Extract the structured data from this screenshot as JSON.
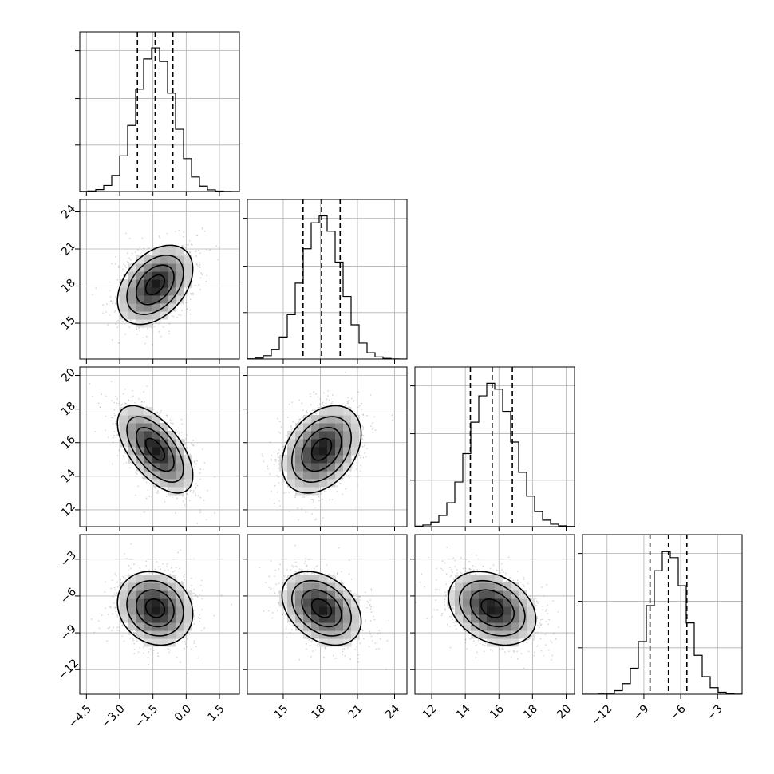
{
  "chart_data": {
    "type": "corner",
    "parameters": [
      {
        "mean": -1.4,
        "sd": 0.85,
        "hist_range": [
          -4.8,
          2.4
        ],
        "quantiles": [
          -2.2,
          -1.4,
          -0.6
        ],
        "ticks": [
          -4.5,
          -3.0,
          -1.5,
          0.0,
          1.5
        ],
        "tick_labels": [
          "−4.5",
          "−3.0",
          "−1.5",
          "0.0",
          "1.5"
        ]
      },
      {
        "mean": 18.1,
        "sd": 1.6,
        "hist_range": [
          12.1,
          25.0
        ],
        "quantiles": [
          16.6,
          18.1,
          19.6
        ],
        "ticks": [
          15,
          18,
          21,
          24
        ],
        "tick_labels": [
          "15",
          "18",
          "21",
          "24"
        ]
      },
      {
        "mean": 15.6,
        "sd": 1.3,
        "hist_range": [
          11.0,
          20.5
        ],
        "quantiles": [
          14.3,
          15.6,
          16.8
        ],
        "ticks": [
          12,
          14,
          16,
          18,
          20
        ],
        "tick_labels": [
          "12",
          "14",
          "16",
          "18",
          "20"
        ]
      },
      {
        "mean": -7.0,
        "sd": 1.5,
        "hist_range": [
          -14.0,
          -1.0
        ],
        "quantiles": [
          -8.5,
          -7.0,
          -5.5
        ],
        "ticks": [
          -12,
          -9,
          -6,
          -3
        ],
        "tick_labels": [
          "−12",
          "−9",
          "−6",
          "−3"
        ]
      }
    ],
    "correlations": [
      [
        1,
        0.4,
        -0.6,
        -0.15
      ],
      [
        0.4,
        1,
        0.35,
        -0.35
      ],
      [
        -0.6,
        0.35,
        1,
        -0.3
      ],
      [
        -0.15,
        -0.35,
        -0.3,
        1
      ]
    ],
    "contour_levels_sigma": [
      0.5,
      1.0,
      1.5,
      2.0
    ],
    "histogram_bins": 20,
    "grid": true,
    "xlabel": "",
    "ylabel": "",
    "title": ""
  }
}
